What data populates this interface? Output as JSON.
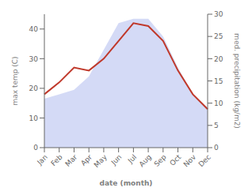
{
  "chart_data": {
    "type": "line",
    "categories": [
      "Jan",
      "Feb",
      "Mar",
      "Apr",
      "May",
      "Jun",
      "Jul",
      "Aug",
      "Sep",
      "Oct",
      "Nov",
      "Dec"
    ],
    "series": [
      {
        "type": "line",
        "color": "#c0392b",
        "values": [
          18,
          22,
          27,
          26,
          30,
          36,
          42,
          41,
          36,
          26,
          18,
          13
        ]
      },
      {
        "type": "area",
        "axis": "y2",
        "color": "#b0bcee",
        "values": [
          11,
          12,
          13,
          16,
          22,
          28,
          29,
          29,
          25,
          18,
          12,
          9
        ]
      }
    ],
    "xlabel": "date (month)",
    "ylabel": "max temp (C)",
    "y2label": "med. precipitation (kg/m2)",
    "ylim": [
      0,
      45
    ],
    "yticks": [
      0,
      10,
      20,
      30,
      40
    ],
    "y2lim": [
      0,
      30
    ],
    "y2ticks": [
      0,
      5,
      10,
      15,
      20,
      25,
      30
    ],
    "grid": false
  }
}
